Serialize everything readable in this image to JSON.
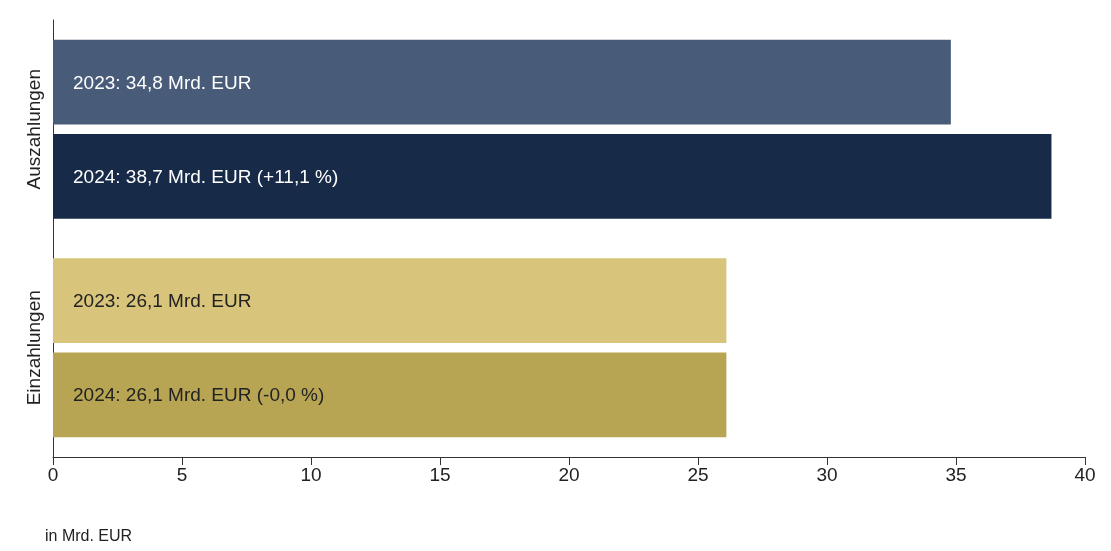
{
  "chart_data": {
    "type": "bar",
    "orientation": "horizontal",
    "categories": [
      "Auszahlungen",
      "Einzahlungen"
    ],
    "series": [
      {
        "colors": [
          "#485b78",
          "#d8c47a"
        ],
        "values": [
          34.8,
          26.1
        ],
        "value_labels": [
          "2023: 34,8 Mrd. EUR",
          "2023: 26,1 Mrd. EUR"
        ]
      },
      {
        "colors": [
          "#172b49",
          "#b8a554"
        ],
        "values": [
          38.7,
          26.1
        ],
        "value_labels": [
          "2024: 38,7 Mrd. EUR (+11,1 %)",
          "2024: 26,1 Mrd. EUR (-0,0 %)"
        ]
      }
    ],
    "xlabel": "in Mrd. EUR",
    "xlim": [
      0,
      40
    ],
    "xticks": [
      0,
      5,
      10,
      15,
      20,
      25,
      30,
      35,
      40
    ],
    "grid": false
  }
}
